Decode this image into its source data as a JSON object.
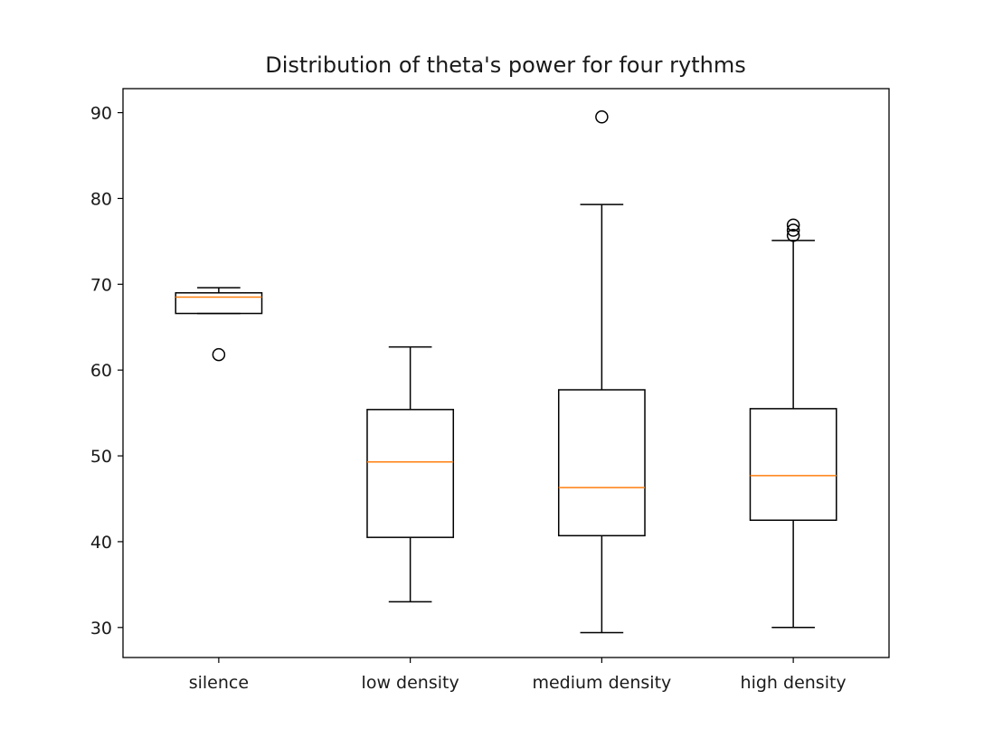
{
  "chart_data": {
    "type": "box",
    "title": "Distribution of theta's power for four rythms",
    "xlabel": "",
    "ylabel": "",
    "ylim": [
      26.5,
      92.8
    ],
    "yticks": [
      30,
      40,
      50,
      60,
      70,
      80,
      90
    ],
    "grid": false,
    "categories": [
      "silence",
      "low density",
      "medium density",
      "high density"
    ],
    "boxes": [
      {
        "whisker_low": 66.6,
        "q1": 66.6,
        "median": 68.5,
        "q3": 69.0,
        "whisker_high": 69.6,
        "outliers": [
          61.8
        ]
      },
      {
        "whisker_low": 33.0,
        "q1": 40.5,
        "median": 49.3,
        "q3": 55.4,
        "whisker_high": 62.7,
        "outliers": []
      },
      {
        "whisker_low": 29.4,
        "q1": 40.7,
        "median": 46.3,
        "q3": 57.7,
        "whisker_high": 79.3,
        "outliers": [
          89.5
        ]
      },
      {
        "whisker_low": 30.0,
        "q1": 42.5,
        "median": 47.7,
        "q3": 55.5,
        "whisker_high": 75.1,
        "outliers": [
          75.7,
          76.3,
          76.9
        ]
      }
    ],
    "colors": {
      "box": "#000000",
      "median": "#ff7f0e",
      "background": "#ffffff"
    }
  }
}
